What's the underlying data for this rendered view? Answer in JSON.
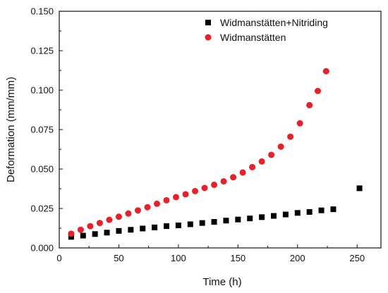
{
  "chart_data": {
    "type": "scatter",
    "title": "",
    "xlabel": "Time (h)",
    "ylabel": "Deformation (mm/mm)",
    "xlim": [
      0,
      270
    ],
    "ylim": [
      0,
      0.15
    ],
    "xticks": [
      0,
      50,
      100,
      150,
      200,
      250
    ],
    "xtick_labels": [
      "0",
      "50",
      "100",
      "150",
      "200",
      "250"
    ],
    "yticks": [
      0,
      0.025,
      0.05,
      0.075,
      0.1,
      0.125,
      0.15
    ],
    "ytick_labels": [
      "0.000",
      "0.025",
      "0.050",
      "0.075",
      "0.100",
      "0.125",
      "0.150"
    ],
    "grid": false,
    "legend_position": "top-right",
    "series": [
      {
        "name": "Widmanstätten+Nitriding",
        "marker": "square",
        "color": "#000000",
        "x": [
          10,
          20,
          30,
          40,
          50,
          60,
          70,
          80,
          90,
          100,
          110,
          120,
          130,
          140,
          150,
          160,
          170,
          180,
          190,
          200,
          210,
          220,
          230,
          252
        ],
        "y": [
          0.007,
          0.0078,
          0.0088,
          0.0097,
          0.0108,
          0.0115,
          0.0123,
          0.013,
          0.0138,
          0.0143,
          0.015,
          0.0158,
          0.0165,
          0.0173,
          0.018,
          0.0187,
          0.0195,
          0.0203,
          0.0212,
          0.0222,
          0.0228,
          0.0238,
          0.0245,
          0.0378
        ]
      },
      {
        "name": "Widmanstätten",
        "marker": "circle",
        "color": "#e8202a",
        "x": [
          10,
          18,
          26,
          34,
          42,
          50,
          58,
          66,
          74,
          82,
          90,
          98,
          106,
          114,
          122,
          130,
          138,
          146,
          154,
          162,
          170,
          178,
          186,
          194,
          202,
          210,
          217,
          224
        ],
        "y": [
          0.009,
          0.0115,
          0.0138,
          0.0158,
          0.0178,
          0.0198,
          0.0218,
          0.0238,
          0.0258,
          0.028,
          0.0302,
          0.0322,
          0.034,
          0.036,
          0.038,
          0.04,
          0.0422,
          0.0448,
          0.0478,
          0.0512,
          0.0548,
          0.059,
          0.0642,
          0.0705,
          0.079,
          0.0905,
          0.0995,
          0.112
        ]
      }
    ]
  }
}
